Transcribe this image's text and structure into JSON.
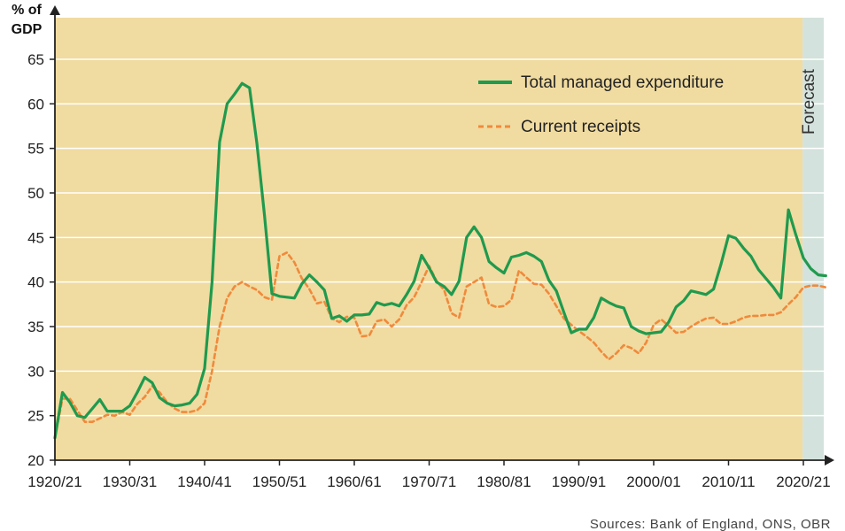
{
  "chart_data": {
    "type": "line",
    "ylabel_line1": "% of",
    "ylabel_line2": "GDP",
    "xlabel": "",
    "ylim": [
      20,
      65
    ],
    "yticks": [
      20,
      25,
      30,
      35,
      40,
      45,
      50,
      55,
      60,
      65
    ],
    "xlim": [
      1920,
      2025
    ],
    "xticks": [
      {
        "x": 1920,
        "label": "1920/21"
      },
      {
        "x": 1930,
        "label": "1930/31"
      },
      {
        "x": 1940,
        "label": "1940/41"
      },
      {
        "x": 1950,
        "label": "1950/51"
      },
      {
        "x": 1960,
        "label": "1960/61"
      },
      {
        "x": 1970,
        "label": "1970/71"
      },
      {
        "x": 1980,
        "label": "1980/81"
      },
      {
        "x": 1990,
        "label": "1990/91"
      },
      {
        "x": 2000,
        "label": "2000/01"
      },
      {
        "x": 2010,
        "label": "2010/11"
      },
      {
        "x": 2020,
        "label": "2020/21"
      }
    ],
    "grid": "horizontal",
    "legend_position": "top-right",
    "forecast_region": {
      "label": "Forecast",
      "from": 2019,
      "to": 2023
    },
    "colors": {
      "plot_background": "#f0dba0",
      "forecast_background": "#d3e2dc",
      "grid": "#ffffff",
      "axis": "#222222"
    },
    "series": [
      {
        "name": "Total managed expenditure",
        "color": "#1f9a4e",
        "style": "solid",
        "x": [
          1920,
          1921,
          1922,
          1923,
          1924,
          1925,
          1926,
          1927,
          1928,
          1929,
          1930,
          1931,
          1932,
          1933,
          1934,
          1935,
          1936,
          1937,
          1938,
          1939,
          1940,
          1941,
          1942,
          1943,
          1944,
          1945,
          1946,
          1947,
          1948,
          1949,
          1950,
          1951,
          1952,
          1953,
          1954,
          1955,
          1956,
          1957,
          1958,
          1959,
          1960,
          1961,
          1962,
          1963,
          1964,
          1965,
          1966,
          1967,
          1968,
          1969,
          1970,
          1971,
          1972,
          1973,
          1974,
          1975,
          1976,
          1977,
          1978,
          1979,
          1980,
          1981,
          1982,
          1983,
          1984,
          1985,
          1986,
          1987,
          1988,
          1989,
          1990,
          1991,
          1992,
          1993,
          1994,
          1995,
          1996,
          1997,
          1998,
          1999,
          2000,
          2001,
          2002,
          2003,
          2004,
          2005,
          2006,
          2007,
          2008,
          2009,
          2010,
          2011,
          2012,
          2013,
          2014,
          2015,
          2016,
          2017,
          2018,
          2019,
          2020,
          2021,
          2022,
          2023
        ],
        "values": [
          22.5,
          27.6,
          26.5,
          25.0,
          24.8,
          25.8,
          26.8,
          25.5,
          25.5,
          25.5,
          26.1,
          27.6,
          29.3,
          28.7,
          27.0,
          26.4,
          26.1,
          26.2,
          26.4,
          27.4,
          30.3,
          40.0,
          55.7,
          60.0,
          61.1,
          62.3,
          61.8,
          55.5,
          47.5,
          38.7,
          38.4,
          38.3,
          38.2,
          39.8,
          40.8,
          40.0,
          39.1,
          35.9,
          36.2,
          35.6,
          36.3,
          36.3,
          36.4,
          37.7,
          37.4,
          37.6,
          37.3,
          38.6,
          40.1,
          43.0,
          41.6,
          40.0,
          39.5,
          38.6,
          40.1,
          45.0,
          46.2,
          45.0,
          42.3,
          41.6,
          41.0,
          42.8,
          43.0,
          43.3,
          42.9,
          42.3,
          40.2,
          39.0,
          36.6,
          34.3,
          34.7,
          34.7,
          36.0,
          38.2,
          37.7,
          37.3,
          37.1,
          35.0,
          34.5,
          34.2,
          34.3,
          34.4,
          35.5,
          37.2,
          37.9,
          39.0,
          38.8,
          38.6,
          39.2,
          42.0,
          45.2,
          44.9,
          43.8,
          42.9,
          41.4,
          40.4,
          39.4,
          38.2,
          48.1,
          45.3,
          42.7,
          41.5,
          40.8,
          40.7
        ]
      },
      {
        "name": "Current receipts",
        "color": "#f08a3c",
        "style": "dashed",
        "x": [
          1920,
          1921,
          1922,
          1923,
          1924,
          1925,
          1926,
          1927,
          1928,
          1929,
          1930,
          1931,
          1932,
          1933,
          1934,
          1935,
          1936,
          1937,
          1938,
          1939,
          1940,
          1941,
          1942,
          1943,
          1944,
          1945,
          1946,
          1947,
          1948,
          1949,
          1950,
          1951,
          1952,
          1953,
          1954,
          1955,
          1956,
          1957,
          1958,
          1959,
          1960,
          1961,
          1962,
          1963,
          1964,
          1965,
          1966,
          1967,
          1968,
          1969,
          1970,
          1971,
          1972,
          1973,
          1974,
          1975,
          1976,
          1977,
          1978,
          1979,
          1980,
          1981,
          1982,
          1983,
          1984,
          1985,
          1986,
          1987,
          1988,
          1989,
          1990,
          1991,
          1992,
          1993,
          1994,
          1995,
          1996,
          1997,
          1998,
          1999,
          2000,
          2001,
          2002,
          2003,
          2004,
          2005,
          2006,
          2007,
          2008,
          2009,
          2010,
          2011,
          2012,
          2013,
          2014,
          2015,
          2016,
          2017,
          2018,
          2019,
          2020,
          2021,
          2022,
          2023
        ],
        "values": [
          22.5,
          26.9,
          26.9,
          25.6,
          24.3,
          24.3,
          24.7,
          25.1,
          25.0,
          25.4,
          25.1,
          26.3,
          27.1,
          28.3,
          27.6,
          26.5,
          25.8,
          25.4,
          25.4,
          25.6,
          26.4,
          30.0,
          35.0,
          38.2,
          39.5,
          40.0,
          39.5,
          39.1,
          38.3,
          38.0,
          42.9,
          43.3,
          42.2,
          40.4,
          39.2,
          37.6,
          37.8,
          35.9,
          35.5,
          36.1,
          36.0,
          33.9,
          34.0,
          35.6,
          35.8,
          35.0,
          35.8,
          37.4,
          38.3,
          40.0,
          41.8,
          40.1,
          39.1,
          36.5,
          36.0,
          39.5,
          40.0,
          40.5,
          37.5,
          37.2,
          37.3,
          38.0,
          41.3,
          40.5,
          39.8,
          39.7,
          38.7,
          37.3,
          35.9,
          35.2,
          34.5,
          33.9,
          33.2,
          32.2,
          31.3,
          32.0,
          32.9,
          32.6,
          32.0,
          33.2,
          35.2,
          35.8,
          35.1,
          34.3,
          34.4,
          35.0,
          35.5,
          35.9,
          36.0,
          35.3,
          35.3,
          35.6,
          36.0,
          36.2,
          36.2,
          36.3,
          36.3,
          36.6,
          37.5,
          38.3,
          39.4,
          39.6,
          39.6,
          39.4
        ]
      }
    ],
    "source": "Sources: Bank of England, ONS, OBR"
  }
}
